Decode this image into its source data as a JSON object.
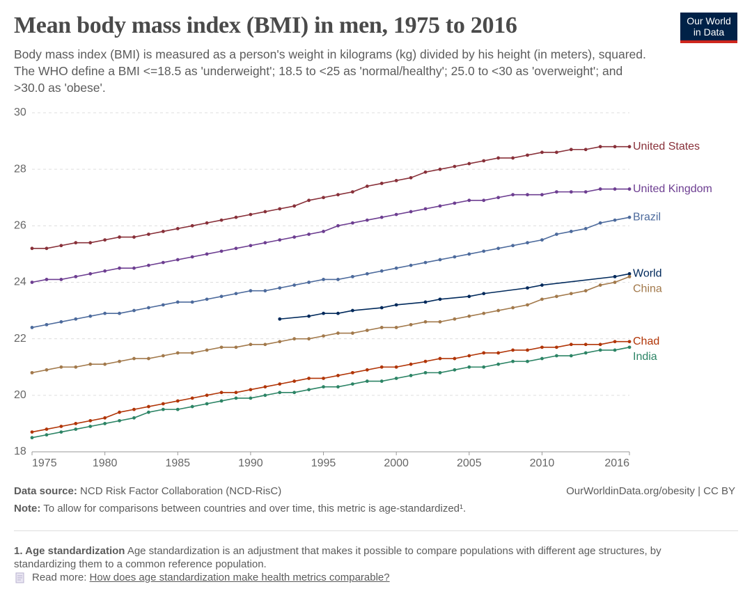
{
  "chart_data": {
    "type": "line",
    "title": "Mean body mass index (BMI) in men, 1975 to 2016",
    "subtitle": "Body mass index (BMI) is measured as a person's weight in kilograms (kg) divided by his height (in meters), squared. The WHO define a BMI <=18.5 as 'underweight'; 18.5 to <25 as 'normal/healthy'; 25.0 to <30 as 'overweight'; and >30.0 as 'obese'.",
    "logo": "Our World in Data",
    "x": [
      1975,
      1976,
      1977,
      1978,
      1979,
      1980,
      1981,
      1982,
      1983,
      1984,
      1985,
      1986,
      1987,
      1988,
      1989,
      1990,
      1991,
      1992,
      1993,
      1994,
      1995,
      1996,
      1997,
      1998,
      1999,
      2000,
      2001,
      2002,
      2003,
      2004,
      2005,
      2006,
      2007,
      2008,
      2009,
      2010,
      2011,
      2012,
      2013,
      2014,
      2015,
      2016
    ],
    "xlim": [
      1975,
      2016
    ],
    "xticks": [
      1975,
      1980,
      1985,
      1990,
      1995,
      2000,
      2005,
      2010,
      2016
    ],
    "ylim": [
      18,
      30
    ],
    "yticks": [
      18,
      20,
      22,
      24,
      26,
      28,
      30
    ],
    "grid": true,
    "series": [
      {
        "name": "United States",
        "color": "#883039",
        "values": [
          25.2,
          25.2,
          25.3,
          25.4,
          25.4,
          25.5,
          25.6,
          25.6,
          25.7,
          25.8,
          25.9,
          26.0,
          26.1,
          26.2,
          26.3,
          26.4,
          26.5,
          26.6,
          26.7,
          26.9,
          27.0,
          27.1,
          27.2,
          27.4,
          27.5,
          27.6,
          27.7,
          27.9,
          28.0,
          28.1,
          28.2,
          28.3,
          28.4,
          28.4,
          28.5,
          28.6,
          28.6,
          28.7,
          28.7,
          28.8,
          28.8,
          28.8
        ]
      },
      {
        "name": "United Kingdom",
        "color": "#6d3e91",
        "values": [
          24.0,
          24.1,
          24.1,
          24.2,
          24.3,
          24.4,
          24.5,
          24.5,
          24.6,
          24.7,
          24.8,
          24.9,
          25.0,
          25.1,
          25.2,
          25.3,
          25.4,
          25.5,
          25.6,
          25.7,
          25.8,
          26.0,
          26.1,
          26.2,
          26.3,
          26.4,
          26.5,
          26.6,
          26.7,
          26.8,
          26.9,
          26.9,
          27.0,
          27.1,
          27.1,
          27.1,
          27.2,
          27.2,
          27.2,
          27.3,
          27.3,
          27.3
        ]
      },
      {
        "name": "Brazil",
        "color": "#4c6a9c",
        "values": [
          22.4,
          22.5,
          22.6,
          22.7,
          22.8,
          22.9,
          22.9,
          23.0,
          23.1,
          23.2,
          23.3,
          23.3,
          23.4,
          23.5,
          23.6,
          23.7,
          23.7,
          23.8,
          23.9,
          24.0,
          24.1,
          24.1,
          24.2,
          24.3,
          24.4,
          24.5,
          24.6,
          24.7,
          24.8,
          24.9,
          25.0,
          25.1,
          25.2,
          25.3,
          25.4,
          25.5,
          25.7,
          25.8,
          25.9,
          26.1,
          26.2,
          26.3
        ]
      },
      {
        "name": "World",
        "color": "#00295b",
        "x": [
          1992,
          1994,
          1995,
          1996,
          1997,
          1999,
          2000,
          2002,
          2003,
          2005,
          2006,
          2009,
          2010,
          2015,
          2016
        ],
        "values": [
          22.7,
          22.8,
          22.9,
          22.9,
          23.0,
          23.1,
          23.2,
          23.3,
          23.4,
          23.5,
          23.6,
          23.8,
          23.9,
          24.2,
          24.3
        ]
      },
      {
        "name": "China",
        "color": "#a2794b",
        "values": [
          20.8,
          20.9,
          21.0,
          21.0,
          21.1,
          21.1,
          21.2,
          21.3,
          21.3,
          21.4,
          21.5,
          21.5,
          21.6,
          21.7,
          21.7,
          21.8,
          21.8,
          21.9,
          22.0,
          22.0,
          22.1,
          22.2,
          22.2,
          22.3,
          22.4,
          22.4,
          22.5,
          22.6,
          22.6,
          22.7,
          22.8,
          22.9,
          23.0,
          23.1,
          23.2,
          23.4,
          23.5,
          23.6,
          23.7,
          23.9,
          24.0,
          24.2
        ]
      },
      {
        "name": "Chad",
        "color": "#b13507",
        "values": [
          18.7,
          18.8,
          18.9,
          19.0,
          19.1,
          19.2,
          19.4,
          19.5,
          19.6,
          19.7,
          19.8,
          19.9,
          20.0,
          20.1,
          20.1,
          20.2,
          20.3,
          20.4,
          20.5,
          20.6,
          20.6,
          20.7,
          20.8,
          20.9,
          21.0,
          21.0,
          21.1,
          21.2,
          21.3,
          21.3,
          21.4,
          21.5,
          21.5,
          21.6,
          21.6,
          21.7,
          21.7,
          21.8,
          21.8,
          21.8,
          21.9,
          21.9
        ]
      },
      {
        "name": "India",
        "color": "#2c8465",
        "values": [
          18.5,
          18.6,
          18.7,
          18.8,
          18.9,
          19.0,
          19.1,
          19.2,
          19.4,
          19.5,
          19.5,
          19.6,
          19.7,
          19.8,
          19.9,
          19.9,
          20.0,
          20.1,
          20.1,
          20.2,
          20.3,
          20.3,
          20.4,
          20.5,
          20.5,
          20.6,
          20.7,
          20.8,
          20.8,
          20.9,
          21.0,
          21.0,
          21.1,
          21.2,
          21.2,
          21.3,
          21.4,
          21.4,
          21.5,
          21.6,
          21.6,
          21.7
        ]
      }
    ],
    "source_label": "Data source:",
    "source": "NCD Risk Factor Collaboration (NCD-RisC)",
    "url": "OurWorldinData.org/obesity | CC BY",
    "note_label": "Note:",
    "note": "To allow for comparisons between countries and over time, this metric is age-standardized¹.",
    "footnote_label": "1. Age standardization",
    "footnote": "Age standardization is an adjustment that makes it possible to compare populations with different age structures, by standardizing them to a common reference population.",
    "read_more_label": "Read more:",
    "read_more_link": "How does age standardization make health metrics comparable?"
  }
}
